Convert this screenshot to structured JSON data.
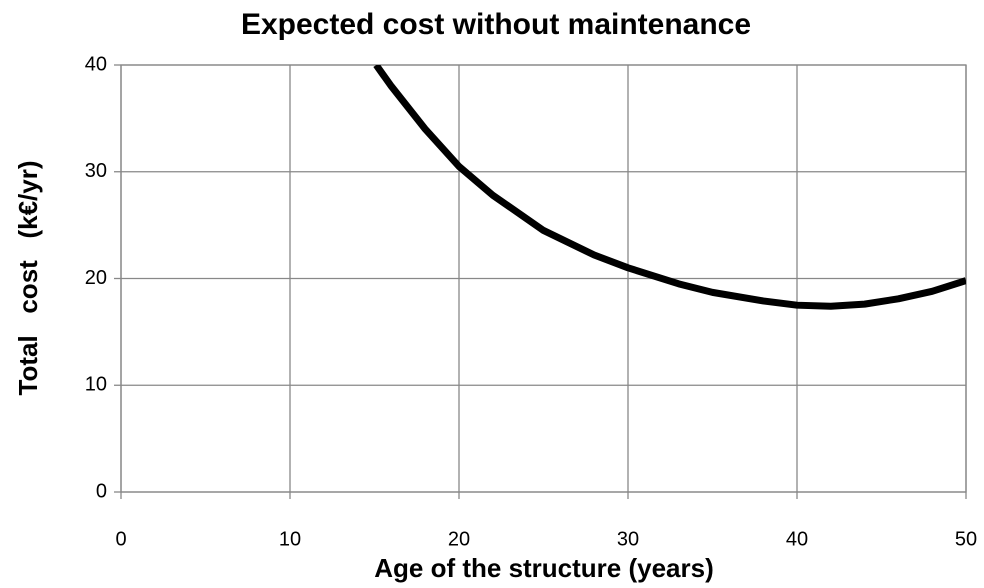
{
  "chart_data": {
    "type": "line",
    "title": "Expected cost without maintenance",
    "x_label": "Age of the structure (years)",
    "y_label": "Total   cost   (k€/yr)",
    "x": [
      15.1,
      16,
      18,
      20,
      22,
      25,
      28,
      30,
      33,
      35,
      38,
      40,
      42,
      44,
      46,
      48,
      50
    ],
    "values": [
      40,
      38,
      34,
      30.5,
      27.8,
      24.5,
      22.2,
      21,
      19.5,
      18.7,
      17.9,
      17.5,
      17.4,
      17.6,
      18.1,
      18.8,
      19.8
    ],
    "color": "#000000",
    "xlim": [
      0,
      50
    ],
    "xticks": [
      0,
      10,
      20,
      30,
      40,
      50
    ],
    "ylim": [
      0,
      40
    ],
    "yticks": [
      0,
      10,
      20,
      30,
      40
    ],
    "grid": true
  }
}
